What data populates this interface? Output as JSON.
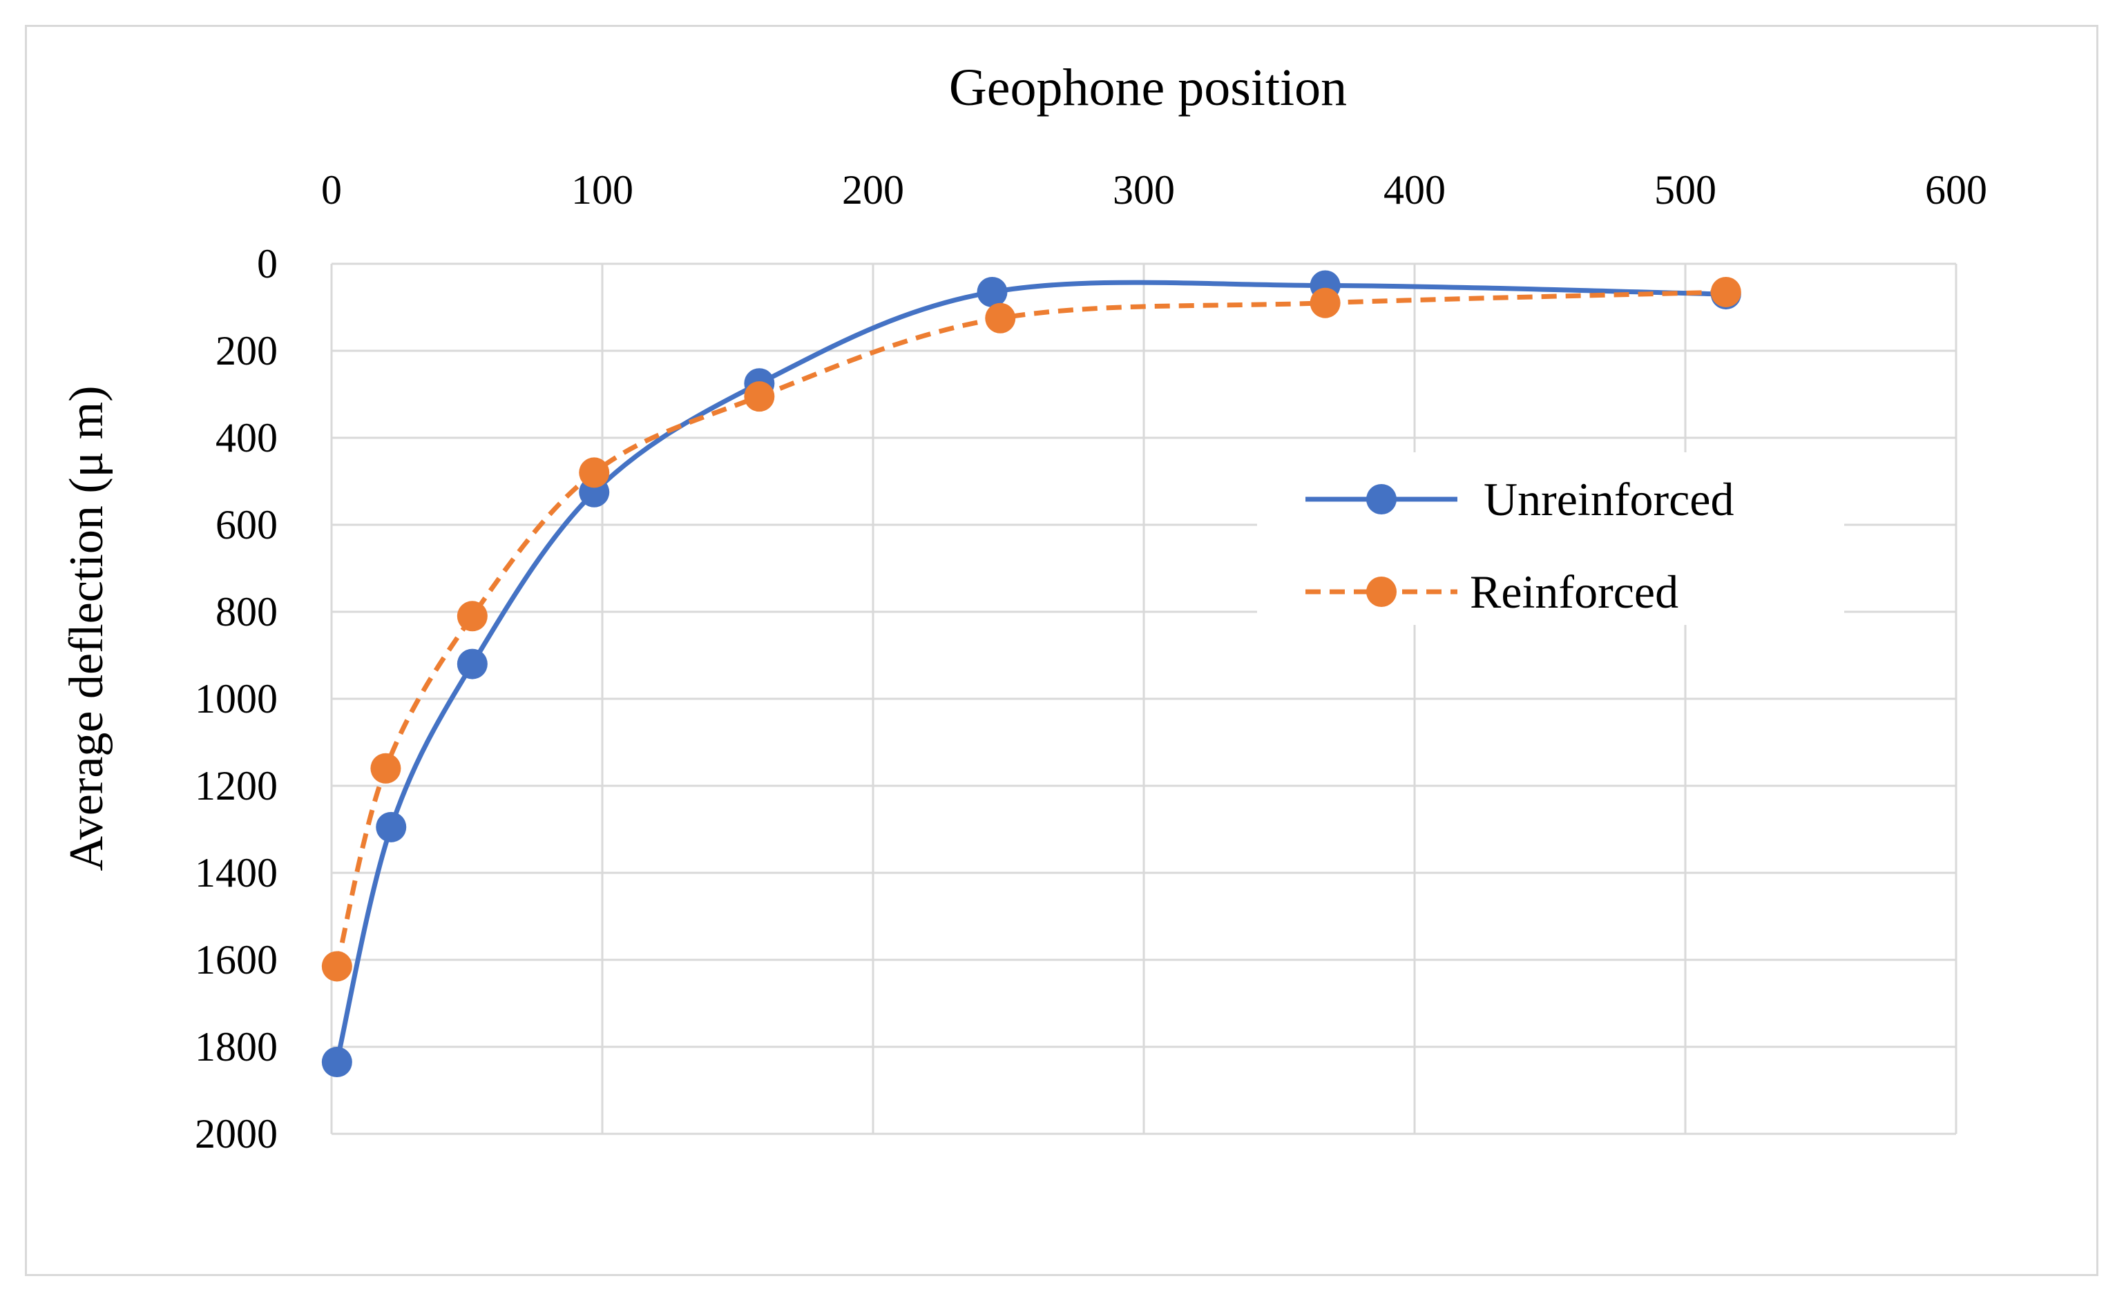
{
  "chart_data": {
    "type": "line",
    "title": "Geophone position",
    "xlabel": "Geophone position",
    "ylabel": "Average deflection (μ m)",
    "xlim": [
      0,
      600
    ],
    "ylim": [
      0,
      2000
    ],
    "y_inverted": true,
    "x_axis_position": "top",
    "xticks": [
      "0",
      "100",
      "200",
      "300",
      "400",
      "500",
      "600"
    ],
    "yticks": [
      "0",
      "200",
      "400",
      "600",
      "800",
      "1000",
      "1200",
      "1400",
      "1600",
      "1800",
      "2000"
    ],
    "grid": true,
    "smoothed": true,
    "legend_position": "right",
    "series": [
      {
        "name": "Unreinforced",
        "color": "#4472c4",
        "line_style": "solid",
        "marker": "circle",
        "x": [
          2,
          22,
          52,
          97,
          158,
          244,
          367,
          515
        ],
        "values": [
          1835,
          1295,
          920,
          525,
          275,
          65,
          50,
          70
        ]
      },
      {
        "name": "Reinforced",
        "color": "#ed7d31",
        "line_style": "dashed",
        "marker": "circle",
        "x": [
          2,
          20,
          52,
          97,
          158,
          247,
          367,
          515
        ],
        "values": [
          1615,
          1160,
          810,
          480,
          305,
          125,
          90,
          65
        ]
      }
    ]
  }
}
